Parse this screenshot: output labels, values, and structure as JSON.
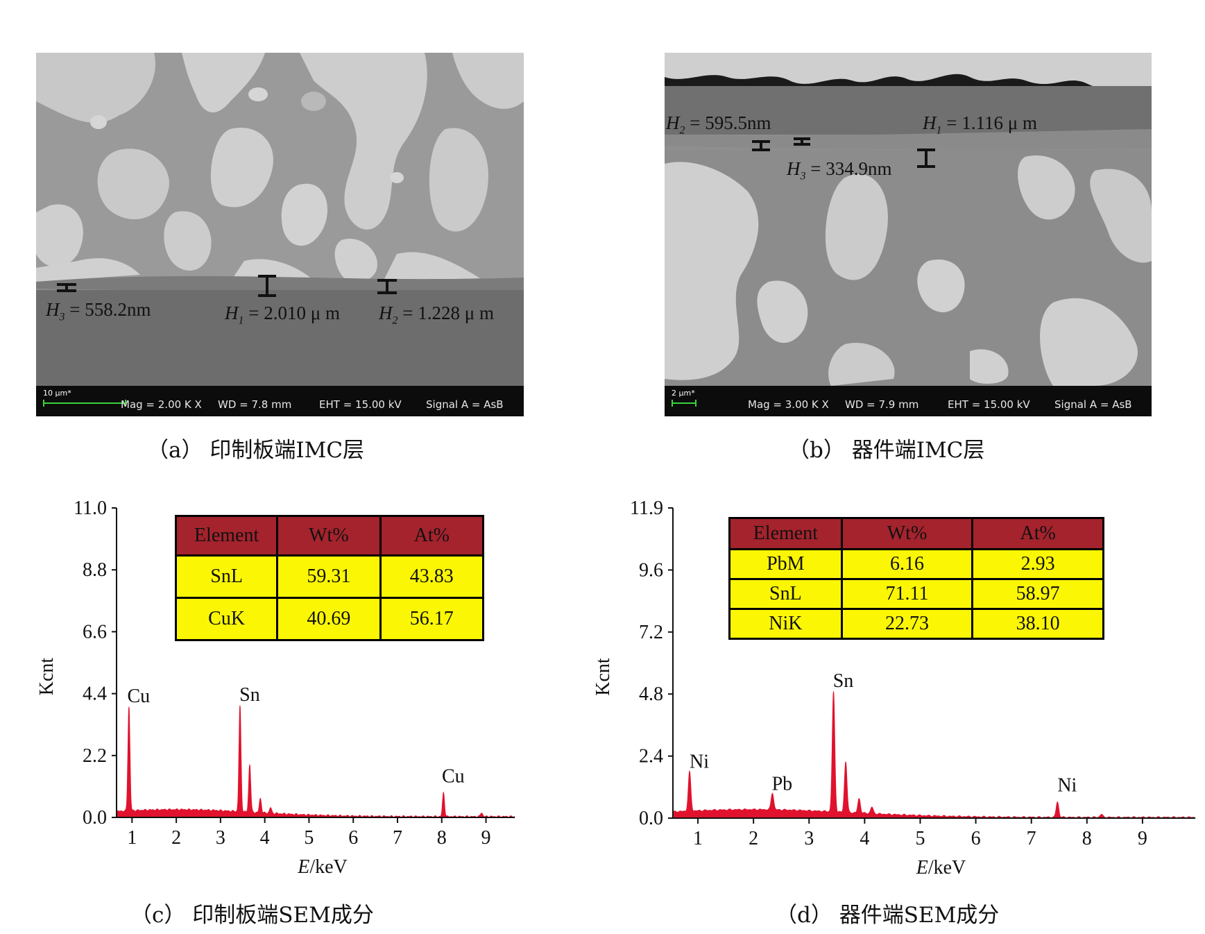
{
  "panels": {
    "a": {
      "caption": "（a）  印制板端IMC层",
      "measurements": [
        {
          "sym": "H",
          "sub": "3",
          "value": "= 558.2nm"
        },
        {
          "sym": "H",
          "sub": "1",
          "value": "= 2.010 μ m"
        },
        {
          "sym": "H",
          "sub": "2",
          "value": "= 1.228 μ m"
        }
      ],
      "infobar": {
        "scale": "10 μm*",
        "mag": "Mag =    2.00 K X",
        "wd": "WD =  7.8 mm",
        "eht": "EHT = 15.00 kV",
        "signal": "Signal A = AsB"
      }
    },
    "b": {
      "caption": "（b）  器件端IMC层",
      "measurements": [
        {
          "sym": "H",
          "sub": "2",
          "value": "= 595.5nm"
        },
        {
          "sym": "H",
          "sub": "1",
          "value": "= 1.116 μ m"
        },
        {
          "sym": "H",
          "sub": "3",
          "value": "= 334.9nm"
        }
      ],
      "infobar": {
        "scale": "2 μm*",
        "mag": "Mag =    3.00 K X",
        "wd": "WD =  7.9 mm",
        "eht": "EHT = 15.00 kV",
        "signal": "Signal A = AsB"
      }
    },
    "c": {
      "caption": "（c）  印制板端SEM成分",
      "table": {
        "headers": [
          "Element",
          "Wt%",
          "At%"
        ],
        "rows": [
          [
            "SnL",
            "59.31",
            "43.83"
          ],
          [
            "CuK",
            "40.69",
            "56.17"
          ]
        ]
      }
    },
    "d": {
      "caption": "（d）  器件端SEM成分",
      "table": {
        "headers": [
          "Element",
          "Wt%",
          "At%"
        ],
        "rows": [
          [
            "PbM",
            "6.16",
            "2.93"
          ],
          [
            "SnL",
            "71.11",
            "58.97"
          ],
          [
            "NiK",
            "22.73",
            "38.10"
          ]
        ]
      }
    }
  },
  "chart_data": [
    {
      "type": "line",
      "xlabel": "E/keV",
      "ylabel": "Kcnt",
      "x_ticks": [
        "1",
        "2",
        "3",
        "4",
        "5",
        "6",
        "7",
        "8",
        "9"
      ],
      "y_ticks": [
        "0.0",
        "2.2",
        "4.4",
        "6.6",
        "8.8",
        "11.0"
      ],
      "xlim": [
        0.65,
        9.65
      ],
      "ylim": [
        0,
        11.0
      ],
      "series_color": "#e0122d",
      "peaks": [
        {
          "label": "Cu",
          "x": 0.93,
          "y": 3.7
        },
        {
          "label": "Sn",
          "x": 3.44,
          "y": 3.75
        },
        {
          "label": "",
          "x": 3.66,
          "y": 1.7
        },
        {
          "label": "",
          "x": 3.9,
          "y": 0.5
        },
        {
          "label": "",
          "x": 4.13,
          "y": 0.2
        },
        {
          "label": "Cu",
          "x": 8.04,
          "y": 0.85
        },
        {
          "label": "",
          "x": 8.9,
          "y": 0.14
        }
      ],
      "background_level": 0.25
    },
    {
      "type": "line",
      "xlabel": "E/keV",
      "ylabel": "Kcnt",
      "x_ticks": [
        "1",
        "2",
        "3",
        "4",
        "5",
        "6",
        "7",
        "8",
        "9"
      ],
      "y_ticks": [
        "0.0",
        "2.4",
        "4.8",
        "7.2",
        "9.6",
        "11.9"
      ],
      "xlim": [
        0.55,
        9.95
      ],
      "ylim": [
        0,
        11.9
      ],
      "series_color": "#e0122d",
      "peaks": [
        {
          "label": "Ni",
          "x": 0.85,
          "y": 1.5
        },
        {
          "label": "Pb",
          "x": 2.34,
          "y": 0.65
        },
        {
          "label": "Sn",
          "x": 3.44,
          "y": 4.6
        },
        {
          "label": "",
          "x": 3.66,
          "y": 1.95
        },
        {
          "label": "",
          "x": 3.9,
          "y": 0.55
        },
        {
          "label": "",
          "x": 4.13,
          "y": 0.25
        },
        {
          "label": "Ni",
          "x": 7.47,
          "y": 0.6
        },
        {
          "label": "",
          "x": 8.26,
          "y": 0.12
        }
      ],
      "background_level": 0.3
    }
  ]
}
